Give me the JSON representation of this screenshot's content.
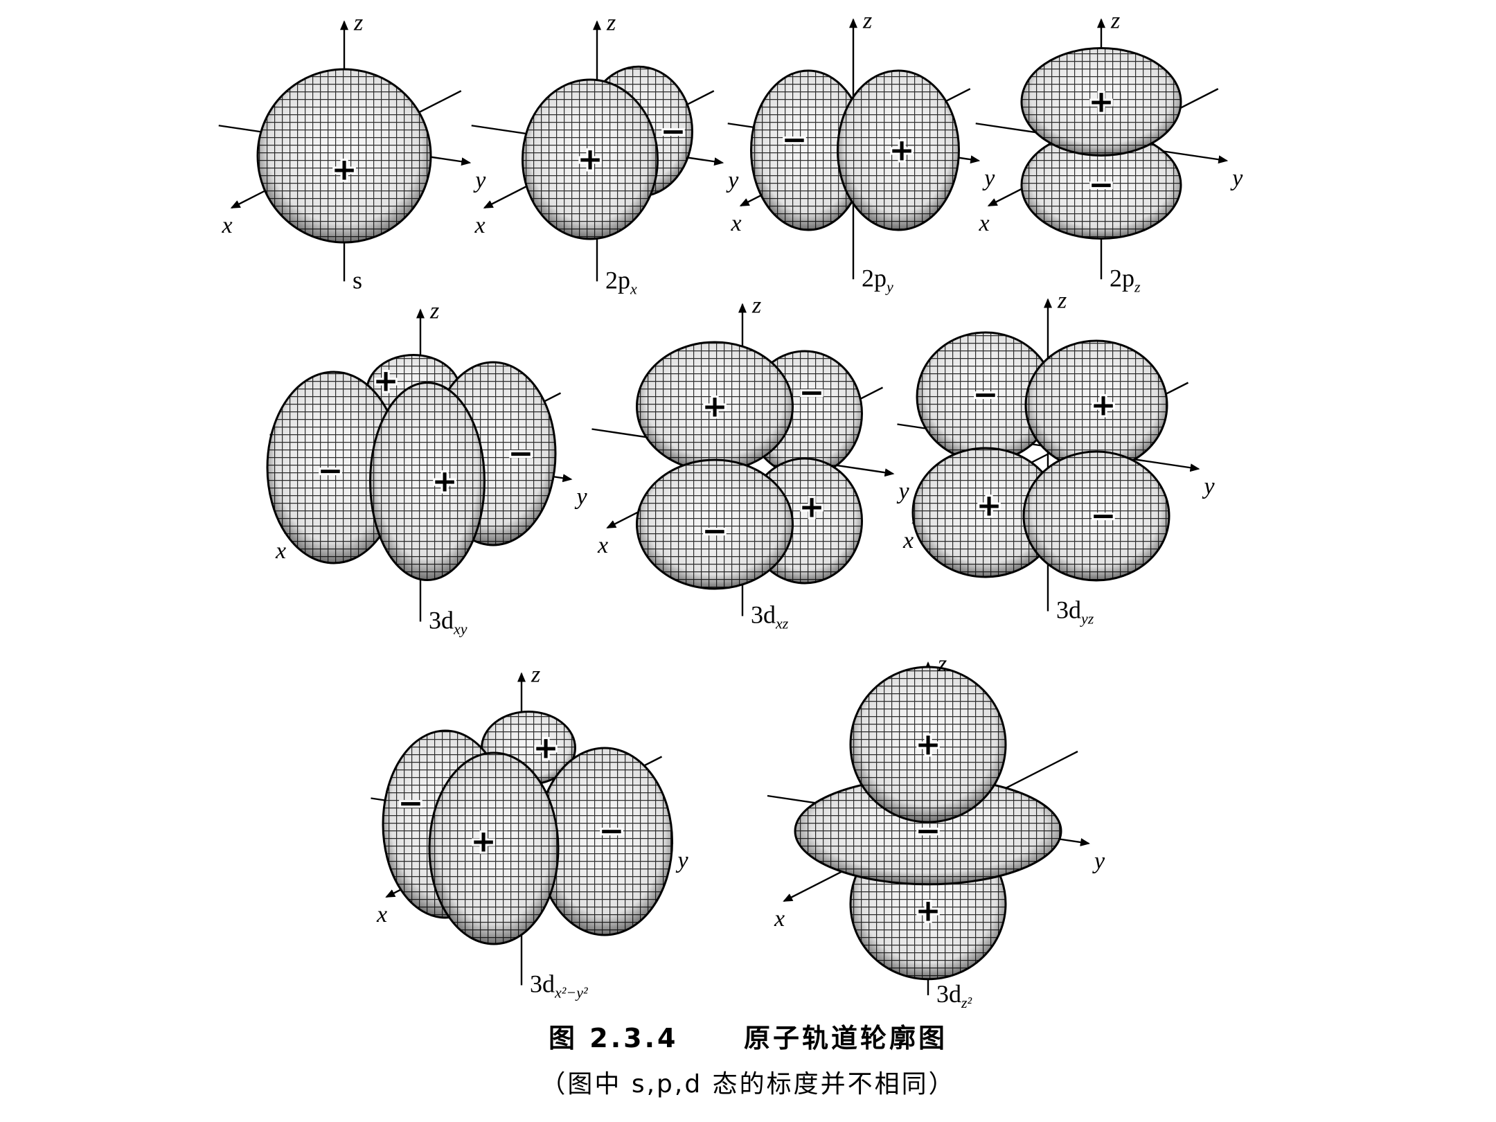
{
  "figure": {
    "caption_number": "图 2.3.4",
    "caption_title": "原子轨道轮廓图",
    "caption_note": "（图中 s,p,d 态的标度并不相同）",
    "orbitals": [
      {
        "id": "s",
        "name": "s",
        "sub": "",
        "signs": [
          "+"
        ]
      },
      {
        "id": "2px",
        "name": "2p",
        "sub": "x",
        "signs": [
          "+",
          "−"
        ]
      },
      {
        "id": "2py",
        "name": "2p",
        "sub": "y",
        "signs": [
          "−",
          "+"
        ]
      },
      {
        "id": "2pz",
        "name": "2p",
        "sub": "z",
        "signs": [
          "+",
          "−"
        ]
      },
      {
        "id": "3dxy",
        "name": "3d",
        "sub": "xy",
        "signs": [
          "+",
          "−",
          "+",
          "−"
        ]
      },
      {
        "id": "3dxz",
        "name": "3d",
        "sub": "xz",
        "signs": [
          "+",
          "−",
          "−",
          "+"
        ]
      },
      {
        "id": "3dyz",
        "name": "3d",
        "sub": "yz",
        "signs": [
          "−",
          "+",
          "+",
          "−"
        ]
      },
      {
        "id": "3dx2y2",
        "name": "3d",
        "sub": "x²−y²",
        "signs": [
          "−",
          "+",
          "+",
          "−"
        ]
      },
      {
        "id": "3dz2",
        "name": "3d",
        "sub": "z²",
        "signs": [
          "+",
          "−",
          "+"
        ]
      }
    ],
    "axis_labels": {
      "x": "x",
      "y": "y",
      "z": "z"
    }
  }
}
